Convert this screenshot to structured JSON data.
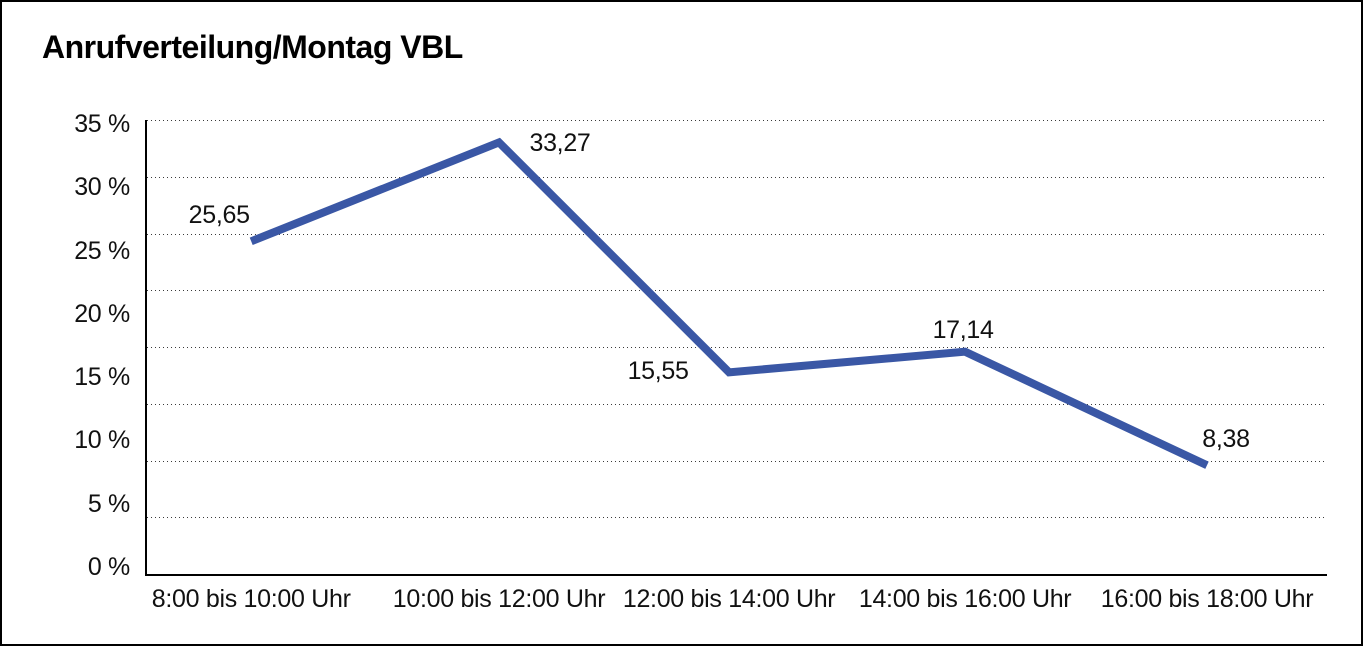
{
  "window": {
    "background": "#ffffff",
    "frame_color": "#000000"
  },
  "header": {
    "title": "Anrufverteilung/Montag VBL"
  },
  "chart_data": {
    "type": "line",
    "title": "Anrufverteilung/Montag VBL",
    "categories": [
      "8:00 bis 10:00 Uhr",
      "10:00 bis 12:00 Uhr",
      "12:00 bis 14:00 Uhr",
      "14:00 bis 16:00 Uhr",
      "16:00 bis 18:00 Uhr"
    ],
    "values": [
      25.65,
      33.27,
      15.55,
      17.14,
      8.38
    ],
    "value_labels": [
      "25,65",
      "33,27",
      "15,55",
      "17,14",
      "8,38"
    ],
    "unit": "%",
    "decimal_format": "comma",
    "xlabel": "",
    "ylabel": "",
    "ylim": [
      0,
      35
    ],
    "y_ticks": [
      35,
      30,
      25,
      20,
      15,
      10,
      5,
      0
    ],
    "y_tick_labels": [
      "35 %",
      "30 %",
      "25 %",
      "20 %",
      "15 %",
      "10 %",
      "5 %",
      "0 %"
    ],
    "grid": "horizontal-dotted",
    "gridline_count": 9,
    "legend_position": "none",
    "line_color": "#3A57A5",
    "line_width": 8,
    "axis_color": "#000000",
    "text_color": "#111111"
  }
}
